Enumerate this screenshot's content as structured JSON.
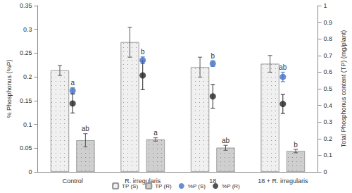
{
  "chart_data": {
    "type": "bar",
    "categories": [
      "Control",
      "R. irregularis",
      "18",
      "18 + R. irregularis"
    ],
    "ylabel": "% Phosphonus (%P)",
    "y2label": "Total Phosphonus content (TP) (mg/plant)",
    "ylim": [
      0,
      0.35
    ],
    "yticks": [
      0,
      0.05,
      0.1,
      0.15,
      0.2,
      0.25,
      0.3,
      0.35
    ],
    "y2lim": [
      0,
      1
    ],
    "y2ticks": [
      0,
      0.1,
      0.2,
      0.3,
      0.4,
      0.5,
      0.6,
      0.7,
      0.8,
      0.9,
      1
    ],
    "grid": false,
    "legend": "bottom",
    "series": [
      {
        "name": "TP (S)",
        "type": "bar",
        "axis": "y2",
        "color": "#f0f0f0",
        "values": [
          0.61,
          0.78,
          0.63,
          0.65
        ],
        "errors": [
          0.03,
          0.09,
          0.06,
          0.05
        ]
      },
      {
        "name": "TP (R)",
        "type": "bar",
        "axis": "y2",
        "color": "#cfcfcf",
        "values": [
          0.19,
          0.195,
          0.145,
          0.125
        ],
        "errors": [
          0.04,
          0.01,
          0.015,
          0.01
        ],
        "significance": [
          "ab",
          "a",
          "ab",
          "b"
        ]
      },
      {
        "name": "%P (S)",
        "type": "scatter",
        "marker": "circle",
        "color": "#4472c4",
        "values": [
          0.171,
          0.235,
          0.228,
          0.2
        ],
        "errors": [
          0.006,
          0.007,
          0.006,
          0.01
        ],
        "significance": [
          "a",
          "b",
          "b",
          "ab"
        ]
      },
      {
        "name": "%P (R)",
        "type": "scatter",
        "marker": "circle",
        "color": "#262626",
        "values": [
          0.144,
          0.203,
          0.159,
          0.143
        ],
        "errors": [
          0.02,
          0.03,
          0.025,
          0.02
        ]
      }
    ]
  }
}
